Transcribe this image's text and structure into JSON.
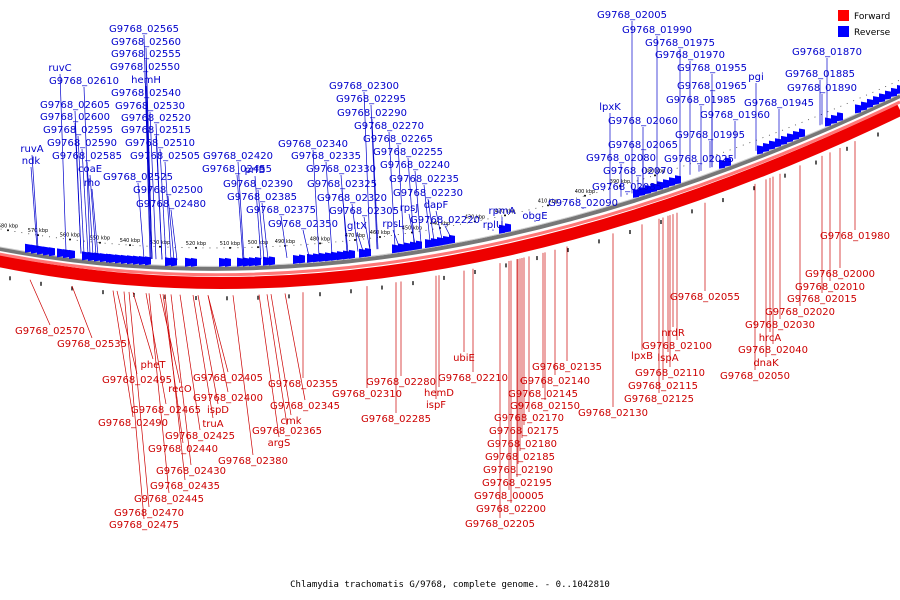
{
  "caption": "Chlamydia trachomatis G/9768, complete genome. - 0..1042810",
  "colors": {
    "forward": "#ff0000",
    "reverse": "#0000ff",
    "forward_label": "#cc0000",
    "reverse_label": "#0000cc"
  },
  "legend": [
    {
      "label": "Forward",
      "color": "#ff0000"
    },
    {
      "label": "Reverse",
      "color": "#0000ff"
    }
  ],
  "scale_ticks": [
    "380 kbp",
    "390 kbp",
    "400 kbp",
    "410 kbp",
    "420 kbp",
    "430 kbp",
    "440 kbp",
    "450 kbp",
    "460 kbp",
    "470 kbp",
    "480 kbp",
    "490 kbp",
    "500 kbp",
    "510 kbp",
    "520 kbp",
    "530 kbp",
    "540 kbp",
    "550 kbp",
    "560 kbp",
    "570 kbp",
    "580 kbp"
  ],
  "reverse_labels": [
    "G9768_02005",
    "G9768_01990",
    "G9768_01975",
    "G9768_01970",
    "G9768_01955",
    "pgi",
    "G9768_01885",
    "G9768_01870",
    "G9768_01965",
    "G9768_01890",
    "G9768_01985",
    "G9768_01945",
    "G9768_01960",
    "lpxK",
    "G9768_02060",
    "G9768_01995",
    "G9768_02065",
    "G9768_02080",
    "G9768_02025",
    "G9768_02070",
    "G9768_02085",
    "G9768_02090",
    "obgE",
    "rpmA",
    "rplU",
    "G9768_02565",
    "G9768_02560",
    "G9768_02555",
    "G9768_02550",
    "ruvC",
    "hemH",
    "G9768_02610",
    "G9768_02540",
    "G9768_02605",
    "G9768_02530",
    "G9768_02600",
    "G9768_02520",
    "G9768_02595",
    "G9768_02515",
    "ruvA",
    "G9768_02590",
    "G9768_02510",
    "ndk",
    "G9768_02585",
    "G9768_02505",
    "coaE",
    "G9768_02525",
    "rho",
    "G9768_02500",
    "G9768_02480",
    "G9768_02420",
    "G9768_02455",
    "prfB",
    "G9768_02390",
    "G9768_02385",
    "G9768_02375",
    "G9768_02350",
    "G9768_02340",
    "G9768_02335",
    "G9768_02330",
    "G9768_02325",
    "G9768_02320",
    "G9768_02305",
    "gltX",
    "G9768_02300",
    "G9768_02295",
    "G9768_02290",
    "G9768_02270",
    "G9768_02265",
    "G9768_02255",
    "G9768_02240",
    "G9768_02235",
    "G9768_02230",
    "rpsJ",
    "dapF",
    "rpsL",
    "G9768_02220"
  ],
  "forward_labels": [
    "G9768_01980",
    "G9768_02000",
    "G9768_02010",
    "G9768_02015",
    "G9768_02020",
    "G9768_02030",
    "hrcA",
    "G9768_02040",
    "dnaK",
    "G9768_02050",
    "G9768_02055",
    "nrdR",
    "G9768_02100",
    "lpxB",
    "lspA",
    "G9768_02110",
    "G9768_02115",
    "G9768_02125",
    "G9768_02130",
    "G9768_02135",
    "G9768_02140",
    "G9768_02145",
    "G9768_02150",
    "G9768_02170",
    "G9768_02175",
    "G9768_02180",
    "G9768_02185",
    "G9768_02190",
    "G9768_02195",
    "G9768_00005",
    "G9768_02200",
    "G9768_02205",
    "G9768_02210",
    "ubiE",
    "G9768_02280",
    "hemD",
    "ispF",
    "G9768_02285",
    "G9768_02310",
    "G9768_02355",
    "G9768_02345",
    "cmk",
    "G9768_02365",
    "argS",
    "G9768_02380",
    "G9768_02405",
    "G9768_02400",
    "ispD",
    "truA",
    "G9768_02425",
    "G9768_02440",
    "G9768_02430",
    "G9768_02435",
    "G9768_02445",
    "G9768_02470",
    "G9768_02475",
    "G9768_02465",
    "G9768_02490",
    "recO",
    "pheT",
    "G9768_02495",
    "G9768_02570",
    "G9768_02535"
  ]
}
